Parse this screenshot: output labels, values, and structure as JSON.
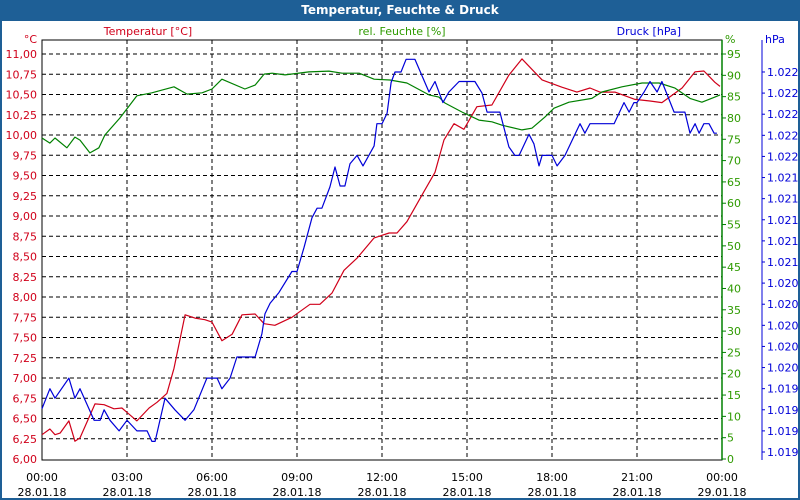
{
  "window": {
    "title": "Temperatur, Feuchte & Druck"
  },
  "colors": {
    "temperature": "#d0001a",
    "humidity": "#008000",
    "humidity_text": "#2e9a00",
    "pressure": "#0000d8",
    "titlebar": "#1e5f96"
  },
  "chart_data": {
    "type": "line",
    "title": "Temperatur, Feuchte & Druck",
    "xlabel": "",
    "x_unit": "hours since 28.01.18 00:00",
    "xlim": [
      0,
      24
    ],
    "grid": true,
    "x_ticks": [
      {
        "time": "00:00",
        "date": "28.01.18"
      },
      {
        "time": "03:00",
        "date": "28.01.18"
      },
      {
        "time": "06:00",
        "date": "28.01.18"
      },
      {
        "time": "09:00",
        "date": "28.01.18"
      },
      {
        "time": "12:00",
        "date": "28.01.18"
      },
      {
        "time": "15:00",
        "date": "28.01.18"
      },
      {
        "time": "18:00",
        "date": "28.01.18"
      },
      {
        "time": "21:00",
        "date": "28.01.18"
      },
      {
        "time": "00:00",
        "date": "29.01.18"
      }
    ],
    "axes": {
      "temperature": {
        "label": "Temperatur [°C]",
        "unit": "°C",
        "ylim": [
          6,
          11
        ],
        "ticks": [
          "6,00",
          "6,25",
          "6,50",
          "6,75",
          "7,00",
          "7,25",
          "7,50",
          "7,75",
          "8,00",
          "8,25",
          "8,50",
          "8,75",
          "9,00",
          "9,25",
          "9,50",
          "9,75",
          "10,00",
          "10,25",
          "10,50",
          "10,75",
          "11,00"
        ]
      },
      "humidity": {
        "label": "rel. Feuchte [%]",
        "unit": "%",
        "ylim": [
          0,
          95
        ],
        "ticks": [
          "0",
          "5",
          "10",
          "15",
          "20",
          "25",
          "30",
          "35",
          "40",
          "45",
          "50",
          "55",
          "60",
          "65",
          "70",
          "75",
          "80",
          "85",
          "90",
          "95"
        ]
      },
      "pressure": {
        "label": "Druck [hPa]",
        "unit": "hPa",
        "ylim": [
          1018.8,
          1022.4
        ],
        "ticks": [
          "1.019",
          "1.019",
          "1.019",
          "1.019",
          "1.020",
          "1.020",
          "1.020",
          "1.020",
          "1.020",
          "1.021",
          "1.021",
          "1.021",
          "1.021",
          "1.021",
          "1.022",
          "1.022",
          "1.022",
          "1.022",
          "1.022"
        ]
      }
    },
    "series": [
      {
        "name": "Temperatur [°C]",
        "axis": "temperature",
        "points": [
          [
            0,
            6.3
          ],
          [
            0.28,
            6.37
          ],
          [
            0.46,
            6.3
          ],
          [
            0.64,
            6.32
          ],
          [
            0.95,
            6.47
          ],
          [
            1.16,
            6.22
          ],
          [
            1.34,
            6.26
          ],
          [
            1.87,
            6.68
          ],
          [
            2.19,
            6.67
          ],
          [
            2.54,
            6.62
          ],
          [
            2.82,
            6.63
          ],
          [
            3.35,
            6.47
          ],
          [
            3.78,
            6.63
          ],
          [
            4.06,
            6.7
          ],
          [
            4.41,
            6.81
          ],
          [
            4.66,
            7.12
          ],
          [
            5.05,
            7.78
          ],
          [
            5.4,
            7.74
          ],
          [
            5.75,
            7.72
          ],
          [
            6.0,
            7.69
          ],
          [
            6.35,
            7.46
          ],
          [
            6.71,
            7.54
          ],
          [
            7.06,
            7.78
          ],
          [
            7.52,
            7.79
          ],
          [
            7.84,
            7.67
          ],
          [
            8.22,
            7.65
          ],
          [
            8.82,
            7.75
          ],
          [
            9.46,
            7.91
          ],
          [
            9.81,
            7.91
          ],
          [
            10.24,
            8.05
          ],
          [
            10.66,
            8.33
          ],
          [
            11.12,
            8.48
          ],
          [
            11.72,
            8.73
          ],
          [
            12.25,
            8.79
          ],
          [
            12.53,
            8.79
          ],
          [
            12.88,
            8.93
          ],
          [
            13.48,
            9.3
          ],
          [
            13.87,
            9.54
          ],
          [
            14.19,
            9.94
          ],
          [
            14.54,
            10.14
          ],
          [
            14.89,
            10.07
          ],
          [
            15.35,
            10.35
          ],
          [
            15.88,
            10.37
          ],
          [
            16.48,
            10.74
          ],
          [
            16.94,
            10.94
          ],
          [
            17.4,
            10.77
          ],
          [
            17.65,
            10.68
          ],
          [
            18.35,
            10.59
          ],
          [
            18.88,
            10.53
          ],
          [
            19.34,
            10.58
          ],
          [
            19.69,
            10.53
          ],
          [
            20.22,
            10.53
          ],
          [
            20.93,
            10.44
          ],
          [
            21.46,
            10.42
          ],
          [
            21.88,
            10.4
          ],
          [
            22.59,
            10.58
          ],
          [
            23.05,
            10.78
          ],
          [
            23.36,
            10.79
          ],
          [
            23.75,
            10.65
          ],
          [
            23.93,
            10.6
          ]
        ]
      },
      {
        "name": "rel. Feuchte [%]",
        "axis": "humidity",
        "points": [
          [
            0,
            75.3
          ],
          [
            0.28,
            74.1
          ],
          [
            0.46,
            75.3
          ],
          [
            0.88,
            73.0
          ],
          [
            1.16,
            75.5
          ],
          [
            1.34,
            74.8
          ],
          [
            1.69,
            71.8
          ],
          [
            2.01,
            73.0
          ],
          [
            2.22,
            76.0
          ],
          [
            2.75,
            80.0
          ],
          [
            3.35,
            85.2
          ],
          [
            3.88,
            85.9
          ],
          [
            4.66,
            87.3
          ],
          [
            5.12,
            85.6
          ],
          [
            5.65,
            85.9
          ],
          [
            6.0,
            86.8
          ],
          [
            6.35,
            89.1
          ],
          [
            7.16,
            86.8
          ],
          [
            7.52,
            87.7
          ],
          [
            7.84,
            90.3
          ],
          [
            8.12,
            90.5
          ],
          [
            8.58,
            90.1
          ],
          [
            9.42,
            90.8
          ],
          [
            10.13,
            91.0
          ],
          [
            10.59,
            90.5
          ],
          [
            11.19,
            90.5
          ],
          [
            11.72,
            89.1
          ],
          [
            12.28,
            88.9
          ],
          [
            12.88,
            88.2
          ],
          [
            13.66,
            85.4
          ],
          [
            14.01,
            84.9
          ],
          [
            14.22,
            83.5
          ],
          [
            14.82,
            81.4
          ],
          [
            15.42,
            79.5
          ],
          [
            15.88,
            79.1
          ],
          [
            16.24,
            78.3
          ],
          [
            16.94,
            77.2
          ],
          [
            17.29,
            77.6
          ],
          [
            17.75,
            80.2
          ],
          [
            18.07,
            82.3
          ],
          [
            18.6,
            83.7
          ],
          [
            19.41,
            84.6
          ],
          [
            19.76,
            86.1
          ],
          [
            20.47,
            87.3
          ],
          [
            21.18,
            88.2
          ],
          [
            21.78,
            88.2
          ],
          [
            22.34,
            87.0
          ],
          [
            22.87,
            84.6
          ],
          [
            23.29,
            83.7
          ],
          [
            23.75,
            84.9
          ],
          [
            23.93,
            85.4
          ]
        ]
      },
      {
        "name": "Druck [hPa]",
        "axis": "pressure",
        "points": [
          [
            0,
            1019.21
          ],
          [
            0.28,
            1019.4
          ],
          [
            0.46,
            1019.31
          ],
          [
            0.95,
            1019.5
          ],
          [
            1.16,
            1019.31
          ],
          [
            1.34,
            1019.4
          ],
          [
            1.84,
            1019.1
          ],
          [
            2.05,
            1019.1
          ],
          [
            2.19,
            1019.2
          ],
          [
            2.4,
            1019.1
          ],
          [
            2.72,
            1019.0
          ],
          [
            3.0,
            1019.1
          ],
          [
            3.35,
            1019.0
          ],
          [
            3.71,
            1019.0
          ],
          [
            3.88,
            1018.9
          ],
          [
            3.99,
            1018.9
          ],
          [
            4.34,
            1019.31
          ],
          [
            4.69,
            1019.2
          ],
          [
            5.05,
            1019.1
          ],
          [
            5.36,
            1019.2
          ],
          [
            5.82,
            1019.5
          ],
          [
            6.18,
            1019.5
          ],
          [
            6.35,
            1019.4
          ],
          [
            6.64,
            1019.5
          ],
          [
            6.88,
            1019.7
          ],
          [
            7.52,
            1019.7
          ],
          [
            7.76,
            1019.92
          ],
          [
            7.87,
            1020.11
          ],
          [
            8.05,
            1020.21
          ],
          [
            8.36,
            1020.31
          ],
          [
            8.82,
            1020.51
          ],
          [
            9.0,
            1020.51
          ],
          [
            9.25,
            1020.74
          ],
          [
            9.53,
            1021.02
          ],
          [
            9.71,
            1021.11
          ],
          [
            9.88,
            1021.11
          ],
          [
            10.16,
            1021.31
          ],
          [
            10.34,
            1021.5
          ],
          [
            10.52,
            1021.32
          ],
          [
            10.69,
            1021.32
          ],
          [
            10.87,
            1021.53
          ],
          [
            11.12,
            1021.61
          ],
          [
            11.33,
            1021.51
          ],
          [
            11.72,
            1021.7
          ],
          [
            11.82,
            1021.91
          ],
          [
            12.0,
            1021.91
          ],
          [
            12.18,
            1022.01
          ],
          [
            12.32,
            1022.3
          ],
          [
            12.46,
            1022.4
          ],
          [
            12.67,
            1022.4
          ],
          [
            12.85,
            1022.52
          ],
          [
            13.16,
            1022.52
          ],
          [
            13.66,
            1022.21
          ],
          [
            13.87,
            1022.31
          ],
          [
            14.15,
            1022.11
          ],
          [
            14.36,
            1022.21
          ],
          [
            14.72,
            1022.31
          ],
          [
            15.28,
            1022.31
          ],
          [
            15.53,
            1022.2
          ],
          [
            15.71,
            1022.02
          ],
          [
            16.16,
            1022.02
          ],
          [
            16.48,
            1021.69
          ],
          [
            16.69,
            1021.61
          ],
          [
            16.84,
            1021.61
          ],
          [
            17.19,
            1021.81
          ],
          [
            17.36,
            1021.72
          ],
          [
            17.54,
            1021.51
          ],
          [
            17.65,
            1021.61
          ],
          [
            18.0,
            1021.61
          ],
          [
            18.18,
            1021.51
          ],
          [
            18.46,
            1021.61
          ],
          [
            18.99,
            1021.91
          ],
          [
            19.16,
            1021.82
          ],
          [
            19.34,
            1021.91
          ],
          [
            20.19,
            1021.91
          ],
          [
            20.54,
            1022.11
          ],
          [
            20.72,
            1022.02
          ],
          [
            20.89,
            1022.11
          ],
          [
            21.0,
            1022.11
          ],
          [
            21.25,
            1022.21
          ],
          [
            21.46,
            1022.31
          ],
          [
            21.71,
            1022.21
          ],
          [
            21.88,
            1022.31
          ],
          [
            22.31,
            1022.02
          ],
          [
            22.69,
            1022.02
          ],
          [
            22.87,
            1021.82
          ],
          [
            23.05,
            1021.91
          ],
          [
            23.19,
            1021.82
          ],
          [
            23.36,
            1021.91
          ],
          [
            23.54,
            1021.91
          ],
          [
            23.72,
            1021.82
          ],
          [
            23.82,
            1021.82
          ]
        ]
      }
    ]
  }
}
